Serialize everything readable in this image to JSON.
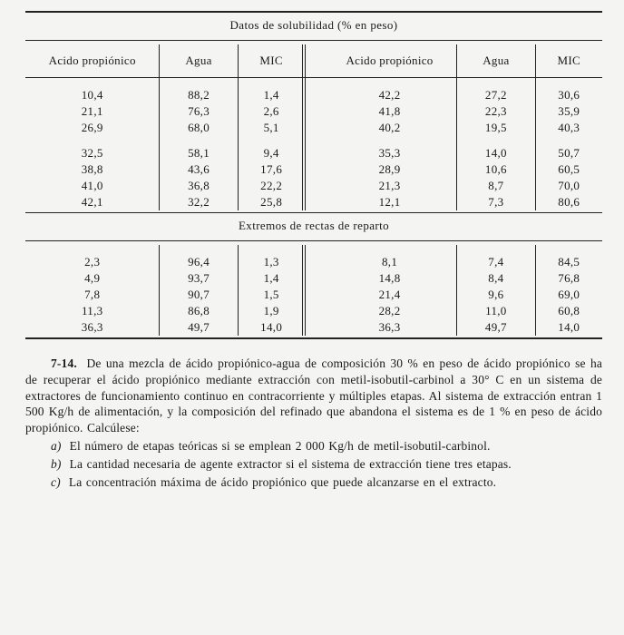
{
  "table1": {
    "caption": "Datos de solubilidad (% en peso)",
    "headers": {
      "acido": "Acido propiónico",
      "agua": "Agua",
      "mic": "MIC"
    },
    "left_block1": [
      [
        "10,4",
        "88,2",
        "1,4"
      ],
      [
        "21,1",
        "76,3",
        "2,6"
      ],
      [
        "26,9",
        "68,0",
        "5,1"
      ]
    ],
    "right_block1": [
      [
        "42,2",
        "27,2",
        "30,6"
      ],
      [
        "41,8",
        "22,3",
        "35,9"
      ],
      [
        "40,2",
        "19,5",
        "40,3"
      ]
    ],
    "left_block2": [
      [
        "32,5",
        "58,1",
        "9,4"
      ],
      [
        "38,8",
        "43,6",
        "17,6"
      ],
      [
        "41,0",
        "36,8",
        "22,2"
      ],
      [
        "42,1",
        "32,2",
        "25,8"
      ]
    ],
    "right_block2": [
      [
        "35,3",
        "14,0",
        "50,7"
      ],
      [
        "28,9",
        "10,6",
        "60,5"
      ],
      [
        "21,3",
        "8,7",
        "70,0"
      ],
      [
        "12,1",
        "7,3",
        "80,6"
      ]
    ]
  },
  "table2": {
    "caption": "Extremos de rectas de reparto",
    "left": [
      [
        "2,3",
        "96,4",
        "1,3"
      ],
      [
        "4,9",
        "93,7",
        "1,4"
      ],
      [
        "7,8",
        "90,7",
        "1,5"
      ],
      [
        "11,3",
        "86,8",
        "1,9"
      ],
      [
        "36,3",
        "49,7",
        "14,0"
      ]
    ],
    "right": [
      [
        "8,1",
        "7,4",
        "84,5"
      ],
      [
        "14,8",
        "8,4",
        "76,8"
      ],
      [
        "21,4",
        "9,6",
        "69,0"
      ],
      [
        "28,2",
        "11,0",
        "60,8"
      ],
      [
        "36,3",
        "49,7",
        "14,0"
      ]
    ]
  },
  "problem": {
    "num": "7-14.",
    "intro": "De una mezcla de ácido propiónico-agua de composición 30 % en peso de ácido propiónico se ha de recuperar el ácido propiónico mediante extracción con metil-isobutil-carbinol a 30° C en un sistema de extractores de funcionamiento continuo en contracorriente y múltiples etapas. Al sistema de extracción entran 1 500 Kg/h de alimentación, y la composición del refinado que abandona el sistema es de 1 % en peso de ácido propiónico. Calcúlese:",
    "a_label": "a)",
    "a": "El número de etapas teóricas si se emplean 2 000 Kg/h de metil-isobutil-carbinol.",
    "b_label": "b)",
    "b": "La cantidad necesaria de agente extractor si el sistema de extracción tiene tres etapas.",
    "c_label": "c)",
    "c": "La concentración máxima de ácido propiónico que puede alcanzarse en el extracto."
  }
}
